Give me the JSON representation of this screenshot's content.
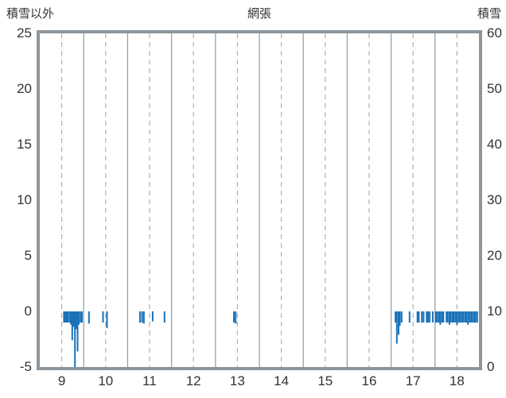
{
  "header": {
    "left_axis_title": "積雪以外",
    "title": "網張",
    "right_axis_title": "積雪"
  },
  "colors": {
    "bar": "#1a72b8",
    "frame": "#8d969c",
    "grid_solid": "#99a1a7",
    "grid_dashed": "#aab1b7",
    "text": "#333333",
    "background": "#ffffff"
  },
  "chart_data": {
    "type": "bar",
    "title": "網張",
    "left_axis": {
      "label": "積雪以外",
      "ticks": [
        25,
        20,
        15,
        10,
        5,
        0,
        -5
      ],
      "range": [
        -5,
        25
      ]
    },
    "right_axis": {
      "label": "積雪",
      "ticks": [
        60,
        50,
        40,
        30,
        20,
        10,
        0
      ],
      "range": [
        0,
        60
      ]
    },
    "x_axis": {
      "ticks": [
        9,
        10,
        11,
        12,
        13,
        14,
        15,
        16,
        17,
        18
      ],
      "range": [
        9,
        19
      ]
    },
    "grid": {
      "solid_vertical_at_month_boundaries": true,
      "dashed_vertical_at_month_centers": true,
      "horizontal": false
    },
    "legend": "none",
    "bars": [
      {
        "x": 9.55,
        "v": -1
      },
      {
        "x": 9.58,
        "v": -1
      },
      {
        "x": 9.61,
        "v": -1
      },
      {
        "x": 9.64,
        "v": -1
      },
      {
        "x": 9.68,
        "v": -1
      },
      {
        "x": 9.71,
        "v": -1.2
      },
      {
        "x": 9.74,
        "v": -2.6
      },
      {
        "x": 9.77,
        "v": -1.4
      },
      {
        "x": 9.8,
        "v": -5
      },
      {
        "x": 9.83,
        "v": -1.6
      },
      {
        "x": 9.86,
        "v": -3.6
      },
      {
        "x": 9.89,
        "v": -1.2
      },
      {
        "x": 9.93,
        "v": -1
      },
      {
        "x": 9.96,
        "v": -1
      },
      {
        "x": 10.12,
        "v": -1.1
      },
      {
        "x": 10.44,
        "v": -1
      },
      {
        "x": 10.53,
        "v": -1.5
      },
      {
        "x": 11.28,
        "v": -1
      },
      {
        "x": 11.33,
        "v": -1
      },
      {
        "x": 11.37,
        "v": -1.1
      },
      {
        "x": 11.57,
        "v": -0.9
      },
      {
        "x": 11.84,
        "v": -1
      },
      {
        "x": 13.42,
        "v": -1
      },
      {
        "x": 13.46,
        "v": -1.1
      },
      {
        "x": 17.1,
        "v": -1
      },
      {
        "x": 17.13,
        "v": -2.9
      },
      {
        "x": 17.17,
        "v": -2.1
      },
      {
        "x": 17.2,
        "v": -1.3
      },
      {
        "x": 17.24,
        "v": -1
      },
      {
        "x": 17.42,
        "v": -1
      },
      {
        "x": 17.6,
        "v": -1
      },
      {
        "x": 17.63,
        "v": -1
      },
      {
        "x": 17.7,
        "v": -1
      },
      {
        "x": 17.74,
        "v": -1
      },
      {
        "x": 17.81,
        "v": -1
      },
      {
        "x": 17.84,
        "v": -1
      },
      {
        "x": 17.88,
        "v": -1
      },
      {
        "x": 17.95,
        "v": -1
      },
      {
        "x": 18.02,
        "v": -1
      },
      {
        "x": 18.05,
        "v": -1
      },
      {
        "x": 18.09,
        "v": -1
      },
      {
        "x": 18.12,
        "v": -1.2
      },
      {
        "x": 18.16,
        "v": -1
      },
      {
        "x": 18.19,
        "v": -1
      },
      {
        "x": 18.26,
        "v": -1
      },
      {
        "x": 18.29,
        "v": -1
      },
      {
        "x": 18.33,
        "v": -1.2
      },
      {
        "x": 18.36,
        "v": -1
      },
      {
        "x": 18.4,
        "v": -1
      },
      {
        "x": 18.43,
        "v": -1
      },
      {
        "x": 18.47,
        "v": -1
      },
      {
        "x": 18.5,
        "v": -1.2
      },
      {
        "x": 18.54,
        "v": -1
      },
      {
        "x": 18.57,
        "v": -1
      },
      {
        "x": 18.61,
        "v": -1
      },
      {
        "x": 18.64,
        "v": -1
      },
      {
        "x": 18.68,
        "v": -1
      },
      {
        "x": 18.71,
        "v": -1
      },
      {
        "x": 18.75,
        "v": -1.2
      },
      {
        "x": 18.78,
        "v": -1
      },
      {
        "x": 18.82,
        "v": -1
      },
      {
        "x": 18.85,
        "v": -1
      },
      {
        "x": 18.89,
        "v": -1
      },
      {
        "x": 18.92,
        "v": -1
      },
      {
        "x": 18.96,
        "v": -1
      }
    ]
  }
}
